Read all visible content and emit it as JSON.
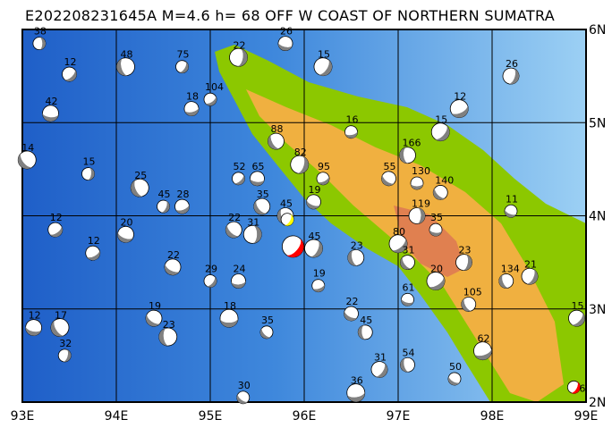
{
  "title": "E202208231645A M=4.6 h= 68 OFF W COAST OF NORTHERN SUMATRA",
  "chart_data": {
    "type": "map",
    "region": {
      "lon": [
        93,
        99
      ],
      "lat": [
        2,
        6
      ]
    },
    "grid": true,
    "x_ticks": [
      "93E",
      "94E",
      "95E",
      "96E",
      "97E",
      "98E",
      "99E"
    ],
    "y_ticks": [
      "6N",
      "5N",
      "4N",
      "3N",
      "2N"
    ],
    "colors": {
      "ocean_deep": "#1f5fc8",
      "ocean_shallow": "#8cc8f0",
      "land_low": "#8cc800",
      "land_mid": "#f0b040",
      "land_high": "#e08050",
      "highlight": "#ff0000",
      "secondary": "#ffff00",
      "mechanism": "#808080"
    },
    "main_event": {
      "lon": 95.88,
      "lat": 3.67,
      "depth": 68,
      "magnitude": 4.6
    },
    "events": [
      {
        "lon": 93.18,
        "lat": 5.85,
        "depth": "38"
      },
      {
        "lon": 93.5,
        "lat": 5.52,
        "depth": "12"
      },
      {
        "lon": 93.3,
        "lat": 5.1,
        "depth": "42"
      },
      {
        "lon": 93.05,
        "lat": 4.6,
        "depth": "14"
      },
      {
        "lon": 93.7,
        "lat": 4.45,
        "depth": "15"
      },
      {
        "lon": 93.35,
        "lat": 3.85,
        "depth": "12"
      },
      {
        "lon": 93.12,
        "lat": 2.8,
        "depth": "12"
      },
      {
        "lon": 93.4,
        "lat": 2.8,
        "depth": "17"
      },
      {
        "lon": 93.45,
        "lat": 2.5,
        "depth": "32"
      },
      {
        "lon": 93.75,
        "lat": 3.6,
        "depth": "12"
      },
      {
        "lon": 94.1,
        "lat": 3.8,
        "depth": "20"
      },
      {
        "lon": 94.25,
        "lat": 4.3,
        "depth": "25"
      },
      {
        "lon": 94.5,
        "lat": 4.1,
        "depth": "45"
      },
      {
        "lon": 94.7,
        "lat": 4.1,
        "depth": "28"
      },
      {
        "lon": 94.6,
        "lat": 3.45,
        "depth": "22"
      },
      {
        "lon": 94.1,
        "lat": 5.6,
        "depth": "48"
      },
      {
        "lon": 94.7,
        "lat": 5.6,
        "depth": "75"
      },
      {
        "lon": 94.8,
        "lat": 5.15,
        "depth": "18"
      },
      {
        "lon": 94.4,
        "lat": 2.9,
        "depth": "19"
      },
      {
        "lon": 94.55,
        "lat": 2.7,
        "depth": "23"
      },
      {
        "lon": 95.0,
        "lat": 3.3,
        "depth": "29"
      },
      {
        "lon": 95.3,
        "lat": 3.3,
        "depth": "24"
      },
      {
        "lon": 95.25,
        "lat": 3.85,
        "depth": "22"
      },
      {
        "lon": 95.45,
        "lat": 3.8,
        "depth": "31"
      },
      {
        "lon": 95.3,
        "lat": 4.4,
        "depth": "52"
      },
      {
        "lon": 95.5,
        "lat": 4.4,
        "depth": "65"
      },
      {
        "lon": 95.55,
        "lat": 4.1,
        "depth": "35"
      },
      {
        "lon": 95.3,
        "lat": 5.7,
        "depth": "22"
      },
      {
        "lon": 95.0,
        "lat": 5.25,
        "depth": "104"
      },
      {
        "lon": 95.8,
        "lat": 5.85,
        "depth": "26"
      },
      {
        "lon": 95.7,
        "lat": 4.8,
        "depth": "88"
      },
      {
        "lon": 95.95,
        "lat": 4.55,
        "depth": "82"
      },
      {
        "lon": 96.2,
        "lat": 4.4,
        "depth": "95"
      },
      {
        "lon": 96.1,
        "lat": 4.15,
        "depth": "19"
      },
      {
        "lon": 95.8,
        "lat": 4.0,
        "depth": "45"
      },
      {
        "lon": 96.1,
        "lat": 3.65,
        "depth": "45"
      },
      {
        "lon": 96.15,
        "lat": 3.25,
        "depth": "19"
      },
      {
        "lon": 96.5,
        "lat": 2.95,
        "depth": "22"
      },
      {
        "lon": 96.55,
        "lat": 3.55,
        "depth": "23"
      },
      {
        "lon": 96.2,
        "lat": 5.6,
        "depth": "15"
      },
      {
        "lon": 96.5,
        "lat": 4.9,
        "depth": "16"
      },
      {
        "lon": 96.9,
        "lat": 4.4,
        "depth": "55"
      },
      {
        "lon": 97.1,
        "lat": 4.65,
        "depth": "166"
      },
      {
        "lon": 97.45,
        "lat": 4.9,
        "depth": "15"
      },
      {
        "lon": 97.2,
        "lat": 4.35,
        "depth": "130"
      },
      {
        "lon": 97.45,
        "lat": 4.25,
        "depth": "140"
      },
      {
        "lon": 97.2,
        "lat": 4.0,
        "depth": "119"
      },
      {
        "lon": 97.0,
        "lat": 3.7,
        "depth": "80"
      },
      {
        "lon": 97.4,
        "lat": 3.85,
        "depth": "35"
      },
      {
        "lon": 97.1,
        "lat": 3.5,
        "depth": "31"
      },
      {
        "lon": 97.7,
        "lat": 3.5,
        "depth": "23"
      },
      {
        "lon": 97.4,
        "lat": 3.3,
        "depth": "20"
      },
      {
        "lon": 97.1,
        "lat": 3.1,
        "depth": "61"
      },
      {
        "lon": 97.75,
        "lat": 3.05,
        "depth": "105"
      },
      {
        "lon": 98.2,
        "lat": 5.5,
        "depth": "26"
      },
      {
        "lon": 97.65,
        "lat": 5.15,
        "depth": "12"
      },
      {
        "lon": 98.2,
        "lat": 4.05,
        "depth": "11"
      },
      {
        "lon": 98.15,
        "lat": 3.3,
        "depth": "134"
      },
      {
        "lon": 98.4,
        "lat": 3.35,
        "depth": "21"
      },
      {
        "lon": 97.9,
        "lat": 2.55,
        "depth": "62"
      },
      {
        "lon": 97.6,
        "lat": 2.25,
        "depth": "50"
      },
      {
        "lon": 97.1,
        "lat": 2.4,
        "depth": "54"
      },
      {
        "lon": 96.8,
        "lat": 2.35,
        "depth": "31"
      },
      {
        "lon": 96.55,
        "lat": 2.1,
        "depth": "36"
      },
      {
        "lon": 95.35,
        "lat": 2.05,
        "depth": "30"
      },
      {
        "lon": 96.65,
        "lat": 2.75,
        "depth": "45"
      },
      {
        "lon": 98.9,
        "lat": 2.9,
        "depth": "15"
      },
      {
        "lon": 95.2,
        "lat": 2.9,
        "depth": "18"
      },
      {
        "lon": 95.6,
        "lat": 2.75,
        "depth": "35"
      }
    ],
    "highlight_events": [
      {
        "lon": 95.82,
        "lat": 3.96,
        "color": "#ffff00"
      },
      {
        "lon": 98.87,
        "lat": 2.16,
        "depth": "6",
        "color": "#ff0000"
      }
    ]
  }
}
